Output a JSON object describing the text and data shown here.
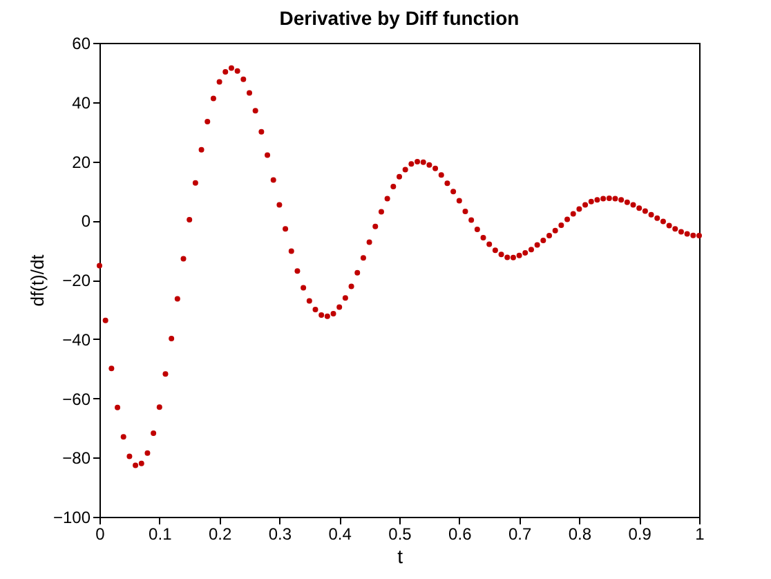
{
  "chart_data": {
    "type": "scatter",
    "title": "Derivative by Diff function",
    "xlabel": "t",
    "ylabel": "df(t)/dt",
    "x": [
      0,
      0.01,
      0.02,
      0.03,
      0.04,
      0.05,
      0.06,
      0.07,
      0.08,
      0.09,
      0.1,
      0.11,
      0.12,
      0.13,
      0.14,
      0.15,
      0.16,
      0.17,
      0.18,
      0.19,
      0.2,
      0.21,
      0.22,
      0.23,
      0.24,
      0.25,
      0.26,
      0.27,
      0.28,
      0.29,
      0.3,
      0.31,
      0.32,
      0.33,
      0.34,
      0.35,
      0.36,
      0.37,
      0.38,
      0.39,
      0.4,
      0.41,
      0.42,
      0.43,
      0.44,
      0.45,
      0.46,
      0.47,
      0.48,
      0.49,
      0.5,
      0.51,
      0.52,
      0.53,
      0.54,
      0.55,
      0.56,
      0.57,
      0.58,
      0.59,
      0.6,
      0.61,
      0.62,
      0.63,
      0.64,
      0.65,
      0.66,
      0.67,
      0.68,
      0.69,
      0.7,
      0.71,
      0.72,
      0.73,
      0.74,
      0.75,
      0.76,
      0.77,
      0.78,
      0.79,
      0.8,
      0.81,
      0.82,
      0.83,
      0.84,
      0.85,
      0.86,
      0.87,
      0.88,
      0.89,
      0.9,
      0.91,
      0.92,
      0.93,
      0.94,
      0.95,
      0.96,
      0.97,
      0.98,
      0.99,
      1.0
    ],
    "series": [
      {
        "color": "#c00000",
        "values": [
          -15.2,
          -33.7,
          -49.9,
          -63.1,
          -73,
          -79.6,
          -82.6,
          -82,
          -78.5,
          -71.8,
          -63,
          -51.8,
          -39.8,
          -26.4,
          -12.9,
          0.3,
          12.7,
          23.9,
          33.4,
          41.2,
          46.8,
          50.2,
          51.5,
          50.5,
          47.7,
          43.1,
          37.1,
          30,
          22.1,
          13.7,
          5.3,
          -2.8,
          -10.3,
          -17,
          -22.7,
          -27.1,
          -30,
          -31.9,
          -32.3,
          -31.4,
          -29.2,
          -26.1,
          -22.2,
          -17.6,
          -12.6,
          -7.3,
          -2,
          3,
          7.4,
          11.5,
          14.8,
          17.2,
          19.1,
          19.9,
          19.7,
          18.8,
          17.6,
          15.4,
          12.6,
          9.8,
          6.7,
          3.1,
          0.2,
          -3,
          -5.8,
          -8,
          -10,
          -11.4,
          -12.4,
          -12.5,
          -11.8,
          -10.9,
          -9.8,
          -8.2,
          -6.7,
          -5.1,
          -3.4,
          -1.6,
          0.4,
          2.3,
          3.9,
          5.3,
          6.4,
          7,
          7.4,
          7.5,
          7.4,
          7,
          6.2,
          5.3,
          4.2,
          3.2,
          2,
          0.8,
          -0.3,
          -1.7,
          -2.8,
          -3.8,
          -4.5,
          -5,
          -5.1
        ]
      }
    ],
    "xlim": [
      0,
      1
    ],
    "xticks": [
      0,
      0.1,
      0.2,
      0.3,
      0.4,
      0.5,
      0.6,
      0.7,
      0.8,
      0.9,
      1
    ],
    "ylim": [
      -100,
      60
    ],
    "yticks": [
      -100,
      -80,
      -60,
      -40,
      -20,
      0,
      20,
      40,
      60
    ],
    "grid": false,
    "legend": false,
    "marker": "circle"
  }
}
